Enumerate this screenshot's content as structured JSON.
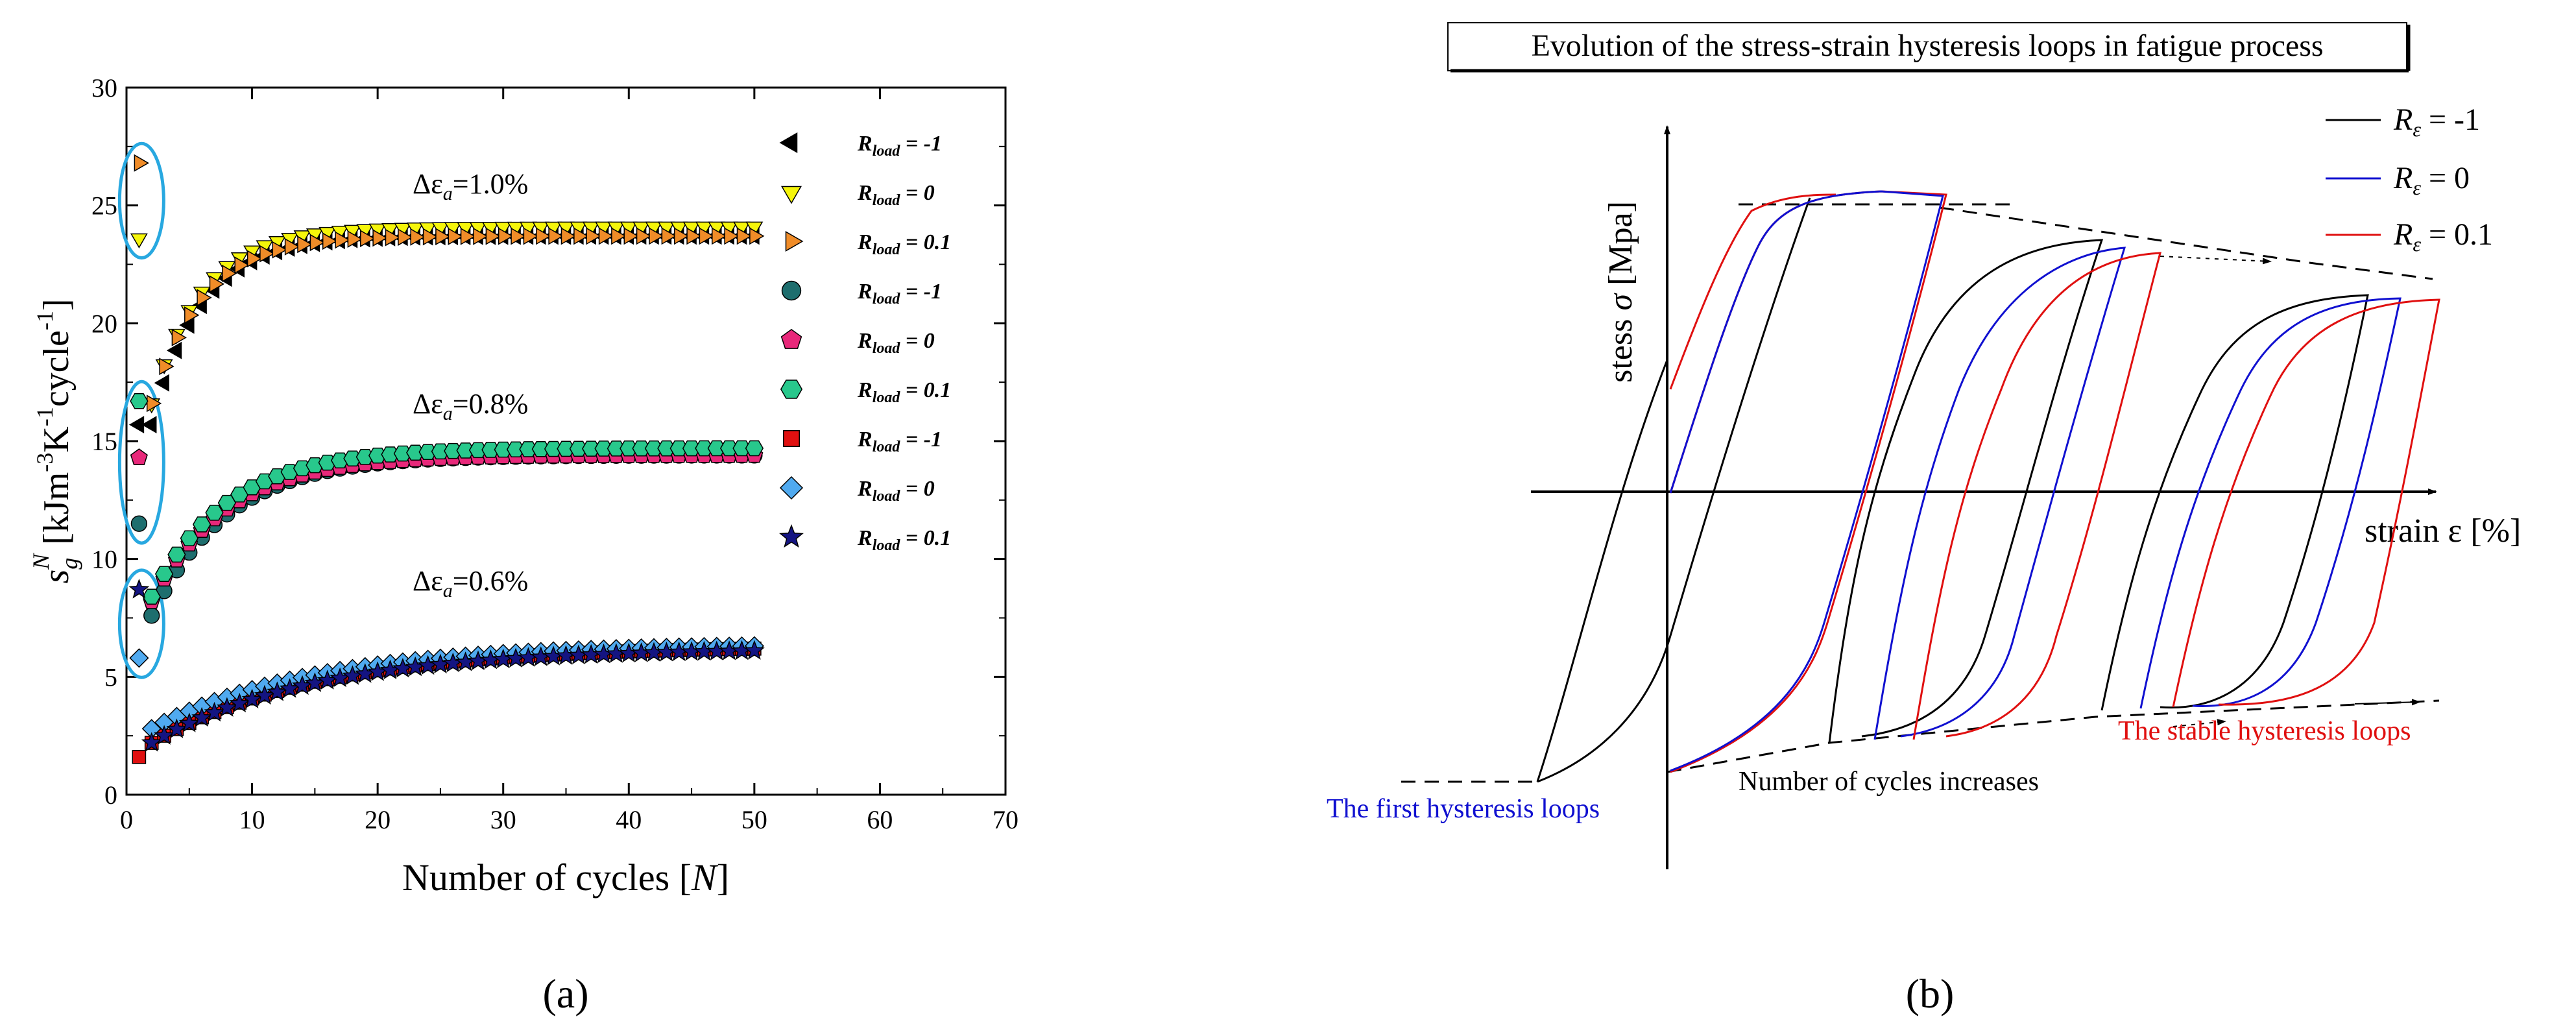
{
  "panel_a": {
    "caption": "(a)",
    "xlabel_text": "Number of cycles [",
    "xlabel_var": "N",
    "xlabel_close": "]",
    "ylabel_var": "s",
    "ylabel_sub": "g",
    "ylabel_sup": "N",
    "ylabel_unit_1": " [kJm",
    "ylabel_sup1": "-3",
    "ylabel_unit_2": "K",
    "ylabel_sup2": "-1",
    "ylabel_unit_3": "cycle",
    "ylabel_sup3": "-1",
    "ylabel_unit_4": "]",
    "annotations": [
      {
        "delta": "Δε",
        "sub": "a",
        "value": "=1.0%"
      },
      {
        "delta": "Δε",
        "sub": "a",
        "value": "=0.8%"
      },
      {
        "delta": "Δε",
        "sub": "a",
        "value": "=0.6%"
      }
    ],
    "legend_r_letter": "R",
    "legend_r_sub": "load",
    "legend": [
      {
        "label": " = -1",
        "marker": "triangle-left",
        "color": "#000000"
      },
      {
        "label": " = 0",
        "marker": "triangle-down",
        "color": "#f5f50a"
      },
      {
        "label": " = 0.1",
        "marker": "triangle-right",
        "color": "#f08c28"
      },
      {
        "label": " = -1",
        "marker": "circle",
        "color": "#1e6e6e"
      },
      {
        "label": " = 0",
        "marker": "pentagon",
        "color": "#e8287a"
      },
      {
        "label": " = 0.1",
        "marker": "hexagon",
        "color": "#28c88c"
      },
      {
        "label": " = -1",
        "marker": "square",
        "color": "#e01010"
      },
      {
        "label": " = 0",
        "marker": "diamond",
        "color": "#50aaf0"
      },
      {
        "label": " = 0.1",
        "marker": "star",
        "color": "#141482"
      }
    ]
  },
  "chart_data": [
    {
      "type": "scatter",
      "title": "",
      "xlabel": "Number of cycles [N]",
      "ylabel": "s_g^N [kJm^-3K^-1cycle^-1]",
      "xlim": [
        0,
        70
      ],
      "ylim": [
        0,
        30
      ],
      "xticks": [
        0,
        10,
        20,
        30,
        40,
        50,
        60,
        70
      ],
      "yticks": [
        0,
        5,
        10,
        15,
        20,
        25,
        30
      ],
      "x_range": [
        1,
        50
      ],
      "series": [
        {
          "name": "Δεa=1.0%, Rload=-1",
          "marker": "triangle-left",
          "color": "#000000",
          "first": 15.7,
          "start": 15.7,
          "end": 23.7,
          "tau": 4.0
        },
        {
          "name": "Δεa=1.0%, Rload=0",
          "marker": "triangle-down",
          "color": "#f5f50a",
          "first": 23.6,
          "start": 16.6,
          "end": 24.1,
          "tau": 4.0
        },
        {
          "name": "Δεa=1.0%, Rload=0.1",
          "marker": "triangle-right",
          "color": "#f08c28",
          "first": 26.8,
          "start": 16.6,
          "end": 23.7,
          "tau": 4.0
        },
        {
          "name": "Δεa=0.8%, Rload=-1",
          "marker": "circle",
          "color": "#1e6e6e",
          "first": 11.5,
          "start": 7.6,
          "end": 14.4,
          "tau": 6.0
        },
        {
          "name": "Δεa=0.8%, Rload=0",
          "marker": "pentagon",
          "color": "#e8287a",
          "first": 14.3,
          "start": 8.2,
          "end": 14.4,
          "tau": 6.0
        },
        {
          "name": "Δεa=0.8%, Rload=0.1",
          "marker": "hexagon",
          "color": "#28c88c",
          "first": 16.7,
          "start": 8.4,
          "end": 14.7,
          "tau": 6.0
        },
        {
          "name": "Δεa=0.6%, Rload=-1",
          "marker": "square",
          "color": "#e01010",
          "first": 1.6,
          "start": 2.2,
          "end": 6.3,
          "tau": 13.0
        },
        {
          "name": "Δεa=0.6%, Rload=0",
          "marker": "diamond",
          "color": "#50aaf0",
          "first": 5.8,
          "start": 2.8,
          "end": 6.4,
          "tau": 13.0
        },
        {
          "name": "Δεa=0.6%, Rload=0.1",
          "marker": "star",
          "color": "#141482",
          "first": 8.7,
          "start": 2.2,
          "end": 6.2,
          "tau": 13.0
        }
      ]
    },
    {
      "type": "line",
      "title": "Evolution of the stress-strain hysteresis loops in fatigue process",
      "xlabel": "strain ε [%]",
      "ylabel": "stess σ [Mpa]",
      "series": [
        {
          "name": "Rε = -1",
          "color": "#000000"
        },
        {
          "name": "Rε = 0",
          "color": "#1010d0"
        },
        {
          "name": "Rε = 0.1",
          "color": "#e01010"
        }
      ]
    }
  ],
  "panel_b": {
    "caption": "(b)",
    "title": "Evolution of the stress-strain hysteresis loops in fatigue process",
    "xlabel": "strain ε [%]",
    "ylabel_prefix": "stess ",
    "ylabel_sym": "σ",
    "ylabel_suffix": " [Mpa]",
    "legend_r": "R",
    "legend_sub": "ε",
    "legend": [
      {
        "label": " = -1",
        "color": "#000000"
      },
      {
        "label": " = 0",
        "color": "#1010d0"
      },
      {
        "label": " = 0.1",
        "color": "#e01010"
      }
    ],
    "note_first": "The first hysteresis loops",
    "note_cycles": "Number of cycles increases",
    "note_stable": "The stable hysteresis loops",
    "note_first_color": "#1010d0",
    "note_stable_color": "#e01010"
  }
}
